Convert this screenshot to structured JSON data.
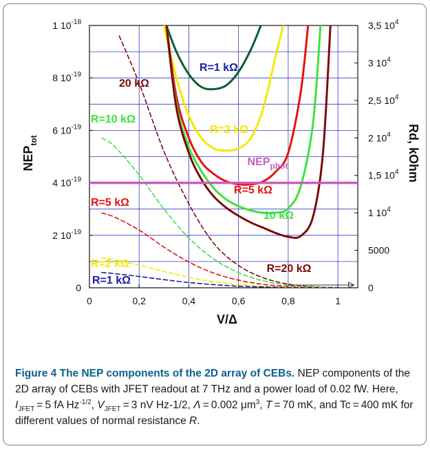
{
  "chart_data": {
    "type": "line",
    "x_axis": {
      "label": "V/Δ",
      "range": [
        0,
        1.08
      ],
      "ticks": [
        {
          "v": 0,
          "t": "0"
        },
        {
          "v": 0.2,
          "t": "0,2"
        },
        {
          "v": 0.4,
          "t": "0,4"
        },
        {
          "v": 0.6,
          "t": "0,6"
        },
        {
          "v": 0.8,
          "t": "0,8"
        },
        {
          "v": 1,
          "t": "1"
        }
      ]
    },
    "y_left": {
      "label_main": "NEP",
      "label_sub": "tot",
      "range": [
        0,
        1e-18
      ],
      "ticks": [
        {
          "v": 0,
          "m": "0",
          "e": ""
        },
        {
          "v": 2e-19,
          "m": "2 10",
          "e": "-19"
        },
        {
          "v": 4e-19,
          "m": "4 10",
          "e": "-19"
        },
        {
          "v": 6e-19,
          "m": "6 10",
          "e": "-19"
        },
        {
          "v": 8e-19,
          "m": "8 10",
          "e": "-19"
        },
        {
          "v": 1e-18,
          "m": "1 10",
          "e": "-18"
        }
      ]
    },
    "y_right": {
      "label": "Rd, kOhm",
      "range": [
        0,
        35000
      ],
      "ticks": [
        {
          "v": 0,
          "m": "0",
          "e": ""
        },
        {
          "v": 5000,
          "m": "5000",
          "e": ""
        },
        {
          "v": 10000,
          "m": "1 10",
          "e": "4"
        },
        {
          "v": 15000,
          "m": "1,5 10",
          "e": "4"
        },
        {
          "v": 20000,
          "m": "2 10",
          "e": "4"
        },
        {
          "v": 25000,
          "m": "2,5 10",
          "e": "4"
        },
        {
          "v": 30000,
          "m": "3 10",
          "e": "4"
        },
        {
          "v": 35000,
          "m": "3,5 10",
          "e": "4"
        }
      ]
    },
    "grid": true,
    "series": [
      {
        "name": "R=1 kΩ",
        "color": "#0d5c2e",
        "style": "solid",
        "axis": "right",
        "label": "R=1 kΩ",
        "label_color": "#1a1aa8",
        "x": [
          0.31,
          0.35,
          0.4,
          0.45,
          0.5,
          0.55,
          0.6,
          0.65,
          0.69
        ],
        "y": [
          35000,
          31500,
          28500,
          26800,
          26500,
          27000,
          28800,
          31800,
          35000
        ]
      },
      {
        "name": "R=2 kΩ",
        "color": "#f5e800",
        "style": "solid",
        "axis": "right",
        "label": "R=2 kΩ",
        "label_color": "#f5e800",
        "x": [
          0.3,
          0.35,
          0.4,
          0.45,
          0.5,
          0.55,
          0.6,
          0.65,
          0.7,
          0.75,
          0.78
        ],
        "y": [
          35000,
          28000,
          23000,
          20000,
          18600,
          18300,
          18600,
          20000,
          24000,
          31000,
          35000
        ]
      },
      {
        "name": "R=5 kΩ",
        "color": "#e81010",
        "style": "solid",
        "axis": "right",
        "label": "R=5 kΩ",
        "label_color": "#e81010",
        "x": [
          0.31,
          0.35,
          0.4,
          0.45,
          0.5,
          0.55,
          0.6,
          0.65,
          0.7,
          0.75,
          0.8,
          0.85,
          0.88
        ],
        "y": [
          35000,
          25500,
          20000,
          16800,
          15200,
          14200,
          13800,
          13800,
          14200,
          15500,
          18000,
          26000,
          35000
        ]
      },
      {
        "name": "10 kΩ",
        "color": "#3fe03f",
        "style": "solid",
        "axis": "right",
        "label": "10 kΩ",
        "label_color": "#3fe03f",
        "x": [
          0.31,
          0.35,
          0.4,
          0.45,
          0.5,
          0.55,
          0.6,
          0.65,
          0.7,
          0.75,
          0.8,
          0.85,
          0.9,
          0.93
        ],
        "y": [
          35000,
          24500,
          18800,
          15600,
          13300,
          11800,
          10900,
          10300,
          10000,
          10000,
          10600,
          13500,
          22000,
          35000
        ]
      },
      {
        "name": "R=20 kΩ",
        "color": "#7a0a0a",
        "style": "solid",
        "axis": "right",
        "label": "R=20 kΩ",
        "label_color": "#7a0a0a",
        "x": [
          0.31,
          0.35,
          0.4,
          0.45,
          0.5,
          0.55,
          0.6,
          0.65,
          0.7,
          0.75,
          0.8,
          0.85,
          0.9,
          0.94,
          0.97
        ],
        "y": [
          35000,
          24000,
          18000,
          14500,
          12200,
          10700,
          9600,
          8700,
          8000,
          7300,
          6800,
          6900,
          9500,
          18000,
          35000
        ]
      },
      {
        "name": "NEP phot",
        "color": "#cc5bbd",
        "style": "solid",
        "axis": "left",
        "label_main": "NEP",
        "label_sub": "phot",
        "label_color": "#cc5bbd",
        "x": [
          0,
          1.08
        ],
        "y": [
          4e-19,
          4e-19
        ]
      },
      {
        "name": "20 kΩ",
        "color": "#7a0a0a",
        "style": "dashed",
        "axis": "left",
        "label": "20 kΩ",
        "label_color": "#7a0a0a",
        "x": [
          0.12,
          0.2,
          0.3,
          0.4,
          0.5,
          0.6,
          0.7,
          0.8,
          0.9,
          1.0
        ],
        "y": [
          9.6e-19,
          7.8e-19,
          5.2e-19,
          3.2e-19,
          1.7e-19,
          8.5e-20,
          3.8e-20,
          1.4e-20,
          4e-21,
          1e-21
        ]
      },
      {
        "name": "R=10 kΩ",
        "color": "#3fe03f",
        "style": "dashed",
        "axis": "left",
        "label": "R=10 kΩ",
        "label_color": "#3fe03f",
        "x": [
          0.05,
          0.1,
          0.2,
          0.3,
          0.4,
          0.5,
          0.6,
          0.7,
          0.8,
          0.9,
          1.0
        ],
        "y": [
          5.7e-19,
          5.4e-19,
          4.3e-19,
          3e-19,
          1.9e-19,
          1.1e-19,
          5.8e-20,
          2.6e-20,
          1e-20,
          3e-21,
          1e-21
        ]
      },
      {
        "name": "R=5 kΩ",
        "color": "#e81010",
        "style": "dashed",
        "axis": "left",
        "label": "R=5 kΩ",
        "label_color": "#e81010",
        "x": [
          0.05,
          0.1,
          0.2,
          0.3,
          0.4,
          0.5,
          0.6,
          0.7,
          0.8,
          0.9,
          1.0
        ],
        "y": [
          2.85e-19,
          2.7e-19,
          2.2e-19,
          1.55e-19,
          9.8e-20,
          5.6e-20,
          2.9e-20,
          1.3e-20,
          5e-21,
          1.5e-21,
          5e-22
        ]
      },
      {
        "name": "R=2 kΩ",
        "color": "#f5e800",
        "style": "dashed",
        "axis": "left",
        "label": "R=2 kΩ",
        "label_color": "#f5e800",
        "x": [
          0.05,
          0.1,
          0.2,
          0.3,
          0.4,
          0.5,
          0.6,
          0.7,
          0.8,
          0.9,
          1.0
        ],
        "y": [
          1.15e-19,
          1.07e-19,
          8.6e-20,
          6.2e-20,
          4e-20,
          2.3e-20,
          1.2e-20,
          5.5e-21,
          2e-21,
          7e-22,
          2e-22
        ]
      },
      {
        "name": "R=1 kΩ",
        "color": "#1a1aa8",
        "style": "dashed",
        "axis": "left",
        "label": "R=1 kΩ",
        "label_color": "#1a1aa8",
        "x": [
          0.05,
          0.1,
          0.2,
          0.3,
          0.4,
          0.5,
          0.6,
          0.7,
          0.8,
          0.9,
          1.0
        ],
        "y": [
          5.8e-20,
          5.4e-20,
          4.3e-20,
          3.1e-20,
          2e-20,
          1.2e-20,
          6e-21,
          3e-21,
          1e-21,
          4e-22,
          1e-22
        ]
      }
    ],
    "annotations": [
      {
        "type": "arrow",
        "axis": "left",
        "x1": 0.8,
        "x2": 1.065,
        "y": 1.05e-20,
        "color": "#333333"
      }
    ]
  },
  "caption": {
    "title": "Figure 4 The NEP components of the 2D array of CEBs.",
    "line1": "NEP components of the 2D array of CEBs with JFET readout at 7 THz and a power load of 0.02 fW. Here, ",
    "ijfet_I": "I",
    "ijfet_sub": "JFET",
    "ijfet_val": " = 5 fA Hz",
    "ijfet_sup": "-1/2",
    "sep1": ", ",
    "vjfet_V": "V",
    "vjfet_sub": "JFET",
    "vjfet_val": " = 3 nV Hz-1/2, ",
    "lambda_sym": "Λ",
    "lambda_val": " = 0.002 μm",
    "lambda_sup": "3",
    "sep2": ", ",
    "t_sym": "T",
    "t_val": " = 70 mK, and Tc = 400 mK for different values of normal resistance ",
    "r_sym": "R",
    "end": "."
  }
}
